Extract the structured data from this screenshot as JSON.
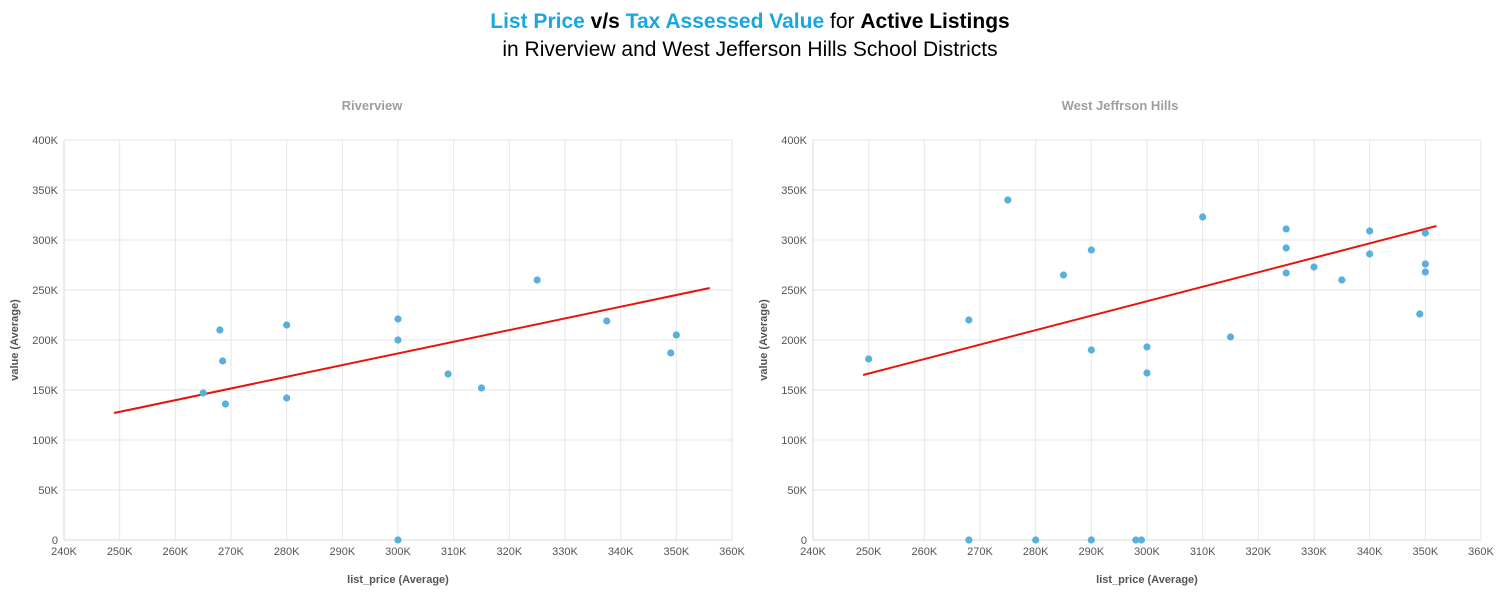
{
  "title": {
    "w1": "List Price",
    "w2": " v/s ",
    "w3": "Tax Assessed Value",
    "w4": " for ",
    "w5": "Active Listings",
    "line2": "in Riverview and West Jefferson Hills School Districts"
  },
  "colors": {
    "accent": "#1aa7df",
    "points": "#5aafdc",
    "trend": "#e8130c"
  },
  "chart_data": [
    {
      "type": "scatter",
      "title": "Riverview",
      "xlabel": "list_price (Average)",
      "ylabel": "value (Average)",
      "xlim": [
        240000,
        360000
      ],
      "ylim": [
        0,
        400000
      ],
      "x_ticks": [
        "240K",
        "250K",
        "260K",
        "270K",
        "280K",
        "290K",
        "300K",
        "310K",
        "320K",
        "330K",
        "340K",
        "350K",
        "360K"
      ],
      "y_ticks": [
        "0",
        "50K",
        "100K",
        "150K",
        "200K",
        "250K",
        "300K",
        "350K",
        "400K"
      ],
      "grid": true,
      "points": [
        {
          "x": 265000,
          "y": 147000
        },
        {
          "x": 268000,
          "y": 210000
        },
        {
          "x": 268500,
          "y": 179000
        },
        {
          "x": 269000,
          "y": 136000
        },
        {
          "x": 280000,
          "y": 215000
        },
        {
          "x": 280000,
          "y": 142000
        },
        {
          "x": 300000,
          "y": 221000
        },
        {
          "x": 300000,
          "y": 200000
        },
        {
          "x": 300000,
          "y": 0
        },
        {
          "x": 309000,
          "y": 166000
        },
        {
          "x": 315000,
          "y": 152000
        },
        {
          "x": 325000,
          "y": 260000
        },
        {
          "x": 337500,
          "y": 219000
        },
        {
          "x": 349000,
          "y": 187000
        },
        {
          "x": 350000,
          "y": 205000
        }
      ],
      "trendline": [
        {
          "x": 249000,
          "y": 127000
        },
        {
          "x": 356000,
          "y": 252000
        }
      ]
    },
    {
      "type": "scatter",
      "title": "West Jeffrson Hills",
      "xlabel": "list_price (Average)",
      "ylabel": "value (Average)",
      "xlim": [
        240000,
        360000
      ],
      "ylim": [
        0,
        400000
      ],
      "x_ticks": [
        "240K",
        "250K",
        "260K",
        "270K",
        "280K",
        "290K",
        "300K",
        "310K",
        "320K",
        "330K",
        "340K",
        "350K",
        "360K"
      ],
      "y_ticks": [
        "0",
        "50K",
        "100K",
        "150K",
        "200K",
        "250K",
        "300K",
        "350K",
        "400K"
      ],
      "grid": true,
      "points": [
        {
          "x": 250000,
          "y": 181000
        },
        {
          "x": 268000,
          "y": 220000
        },
        {
          "x": 268000,
          "y": 0
        },
        {
          "x": 275000,
          "y": 340000
        },
        {
          "x": 280000,
          "y": 0
        },
        {
          "x": 285000,
          "y": 265000
        },
        {
          "x": 290000,
          "y": 290000
        },
        {
          "x": 290000,
          "y": 190000
        },
        {
          "x": 290000,
          "y": 0
        },
        {
          "x": 298000,
          "y": 0
        },
        {
          "x": 299000,
          "y": 0
        },
        {
          "x": 300000,
          "y": 193000
        },
        {
          "x": 300000,
          "y": 167000
        },
        {
          "x": 310000,
          "y": 323000
        },
        {
          "x": 315000,
          "y": 203000
        },
        {
          "x": 325000,
          "y": 311000
        },
        {
          "x": 325000,
          "y": 292000
        },
        {
          "x": 325000,
          "y": 267000
        },
        {
          "x": 330000,
          "y": 273000
        },
        {
          "x": 335000,
          "y": 260000
        },
        {
          "x": 340000,
          "y": 309000
        },
        {
          "x": 340000,
          "y": 286000
        },
        {
          "x": 349000,
          "y": 226000
        },
        {
          "x": 350000,
          "y": 307000
        },
        {
          "x": 350000,
          "y": 276000
        },
        {
          "x": 350000,
          "y": 268000
        }
      ],
      "trendline": [
        {
          "x": 249000,
          "y": 165000
        },
        {
          "x": 352000,
          "y": 314000
        }
      ]
    }
  ]
}
